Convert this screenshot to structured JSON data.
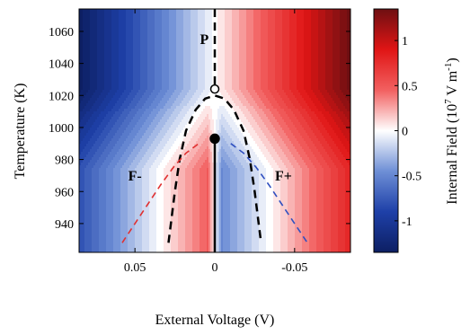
{
  "chart_data": {
    "type": "heatmap",
    "title": "",
    "xlabel": "External Voltage (V)",
    "ylabel": "Temperature (K)",
    "x_axis_reversed": true,
    "xlim": [
      0.085,
      -0.085
    ],
    "ylim": [
      922,
      1074
    ],
    "x_ticks": [
      0.05,
      0,
      -0.05
    ],
    "x_tick_labels": [
      "0.05",
      "0",
      "-0.05"
    ],
    "y_ticks": [
      940,
      960,
      980,
      1000,
      1020,
      1040,
      1060
    ],
    "y_tick_labels": [
      "940",
      "960",
      "980",
      "1000",
      "1020",
      "1040",
      "1060"
    ],
    "colorbar": {
      "label": "Internal Field (10",
      "label_sup1": "7",
      "label_mid": " V m",
      "label_sup2": "-1",
      "label_end": ")",
      "range": [
        -1.35,
        1.35
      ],
      "ticks": [
        1,
        0.5,
        0,
        -0.5,
        -1
      ],
      "tick_labels": [
        "1",
        "0.5",
        "0",
        "-0.5",
        "-1"
      ],
      "colormap": [
        "#0d1f63",
        "#1e40a8",
        "#6e8fd6",
        "#ffffff",
        "#f26060",
        "#e01515",
        "#6e0f12"
      ]
    },
    "annotations": [
      {
        "text": "P",
        "x": 0.0065,
        "y": 1052
      },
      {
        "text": "F-",
        "x": 0.05,
        "y": 967
      },
      {
        "text": "F+",
        "x": -0.043,
        "y": 967
      }
    ],
    "series": [
      {
        "style": "dashed",
        "color": "#000000",
        "x": [
          0,
          0
        ],
        "y": [
          1074,
          1024
        ]
      },
      {
        "style": "dashed",
        "color": "#000000",
        "x": [
          0.029,
          0.025,
          0.022,
          0.018,
          0.012,
          0.006,
          0,
          -0.006,
          -0.012,
          -0.018,
          -0.022,
          -0.025,
          -0.029
        ],
        "y": [
          928,
          960,
          980,
          998,
          1011,
          1018,
          1020,
          1018,
          1011,
          998,
          980,
          960,
          928
        ]
      },
      {
        "style": "solid",
        "color": "#000000",
        "x": [
          0,
          0
        ],
        "y": [
          993,
          922
        ]
      },
      {
        "style": "dashed",
        "color": "#e03030",
        "x": [
          0.058,
          0.05,
          0.042,
          0.034,
          0.026,
          0.018,
          0.01
        ],
        "y": [
          928,
          940,
          952,
          964,
          975,
          984,
          990
        ]
      },
      {
        "style": "dashed",
        "color": "#3050c0",
        "x": [
          -0.01,
          -0.018,
          -0.026,
          -0.034,
          -0.042,
          -0.05,
          -0.058
        ],
        "y": [
          990,
          984,
          975,
          964,
          952,
          940,
          928
        ]
      }
    ],
    "points": [
      {
        "marker": "open-circle",
        "x": 0,
        "y": 1024
      },
      {
        "marker": "filled-circle",
        "x": 0,
        "y": 993
      }
    ],
    "field_model": {
      "Ec_V": 0.0045,
      "Vscale_V": 0.085,
      "Emax": 1.35,
      "T_transition": 1024
    }
  }
}
